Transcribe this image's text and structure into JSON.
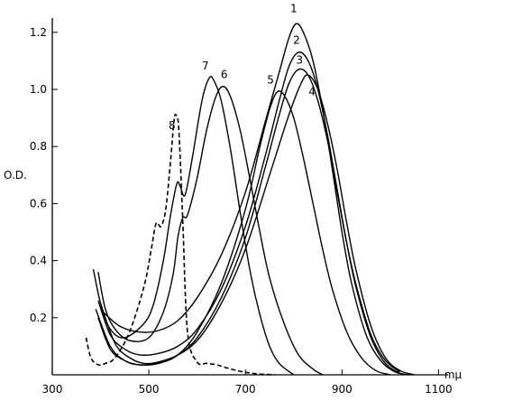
{
  "chart_data": {
    "type": "line",
    "title": "",
    "ylabel": "O.D.",
    "xlabel": "mμ",
    "xlim": [
      300,
      1200
    ],
    "ylim": [
      0,
      1.25
    ],
    "x_ticks": [
      {
        "value": 300,
        "label": "300"
      },
      {
        "value": 500,
        "label": "500"
      },
      {
        "value": 700,
        "label": "700"
      },
      {
        "value": 900,
        "label": "900"
      },
      {
        "value": 1100,
        "label": "1100"
      }
    ],
    "y_ticks": [
      {
        "value": 0.2,
        "label": "0.2"
      },
      {
        "value": 0.4,
        "label": "0.4"
      },
      {
        "value": 0.6,
        "label": "0.6"
      },
      {
        "value": 0.8,
        "label": "0.8"
      },
      {
        "value": 1.0,
        "label": "1.0"
      },
      {
        "value": 1.2,
        "label": "1.2"
      }
    ],
    "grid": false,
    "series": [
      {
        "name": "1",
        "dashed": false,
        "label_at": [
          800,
          1.27
        ],
        "points": [
          [
            405,
            0.22
          ],
          [
            440,
            0.17
          ],
          [
            480,
            0.15
          ],
          [
            520,
            0.155
          ],
          [
            560,
            0.19
          ],
          [
            600,
            0.27
          ],
          [
            650,
            0.42
          ],
          [
            700,
            0.64
          ],
          [
            740,
            0.88
          ],
          [
            770,
            1.06
          ],
          [
            790,
            1.18
          ],
          [
            805,
            1.23
          ],
          [
            820,
            1.2
          ],
          [
            840,
            1.1
          ],
          [
            860,
            0.93
          ],
          [
            880,
            0.72
          ],
          [
            900,
            0.5
          ],
          [
            920,
            0.32
          ],
          [
            950,
            0.14
          ],
          [
            980,
            0.05
          ],
          [
            1010,
            0.01
          ],
          [
            1040,
            0.0
          ]
        ]
      },
      {
        "name": "2",
        "dashed": false,
        "label_at": [
          806,
          1.16
        ],
        "points": [
          [
            395,
            0.26
          ],
          [
            420,
            0.14
          ],
          [
            450,
            0.09
          ],
          [
            480,
            0.07
          ],
          [
            520,
            0.075
          ],
          [
            560,
            0.1
          ],
          [
            600,
            0.16
          ],
          [
            650,
            0.3
          ],
          [
            700,
            0.52
          ],
          [
            740,
            0.76
          ],
          [
            770,
            0.96
          ],
          [
            790,
            1.08
          ],
          [
            810,
            1.13
          ],
          [
            830,
            1.1
          ],
          [
            850,
            1.0
          ],
          [
            870,
            0.84
          ],
          [
            890,
            0.65
          ],
          [
            910,
            0.46
          ],
          [
            930,
            0.3
          ],
          [
            960,
            0.13
          ],
          [
            990,
            0.04
          ],
          [
            1020,
            0.005
          ]
        ]
      },
      {
        "name": "3",
        "dashed": false,
        "label_at": [
          812,
          1.09
        ],
        "points": [
          [
            400,
            0.25
          ],
          [
            430,
            0.11
          ],
          [
            460,
            0.06
          ],
          [
            490,
            0.04
          ],
          [
            520,
            0.045
          ],
          [
            560,
            0.07
          ],
          [
            600,
            0.13
          ],
          [
            650,
            0.27
          ],
          [
            700,
            0.48
          ],
          [
            740,
            0.72
          ],
          [
            770,
            0.91
          ],
          [
            790,
            1.02
          ],
          [
            810,
            1.07
          ],
          [
            830,
            1.05
          ],
          [
            850,
            0.96
          ],
          [
            870,
            0.82
          ],
          [
            890,
            0.64
          ],
          [
            910,
            0.46
          ],
          [
            930,
            0.31
          ],
          [
            960,
            0.14
          ],
          [
            990,
            0.05
          ],
          [
            1020,
            0.01
          ]
        ]
      },
      {
        "name": "4",
        "dashed": false,
        "label_at": [
          838,
          0.98
        ],
        "points": [
          [
            395,
            0.2
          ],
          [
            420,
            0.09
          ],
          [
            450,
            0.05
          ],
          [
            480,
            0.035
          ],
          [
            510,
            0.04
          ],
          [
            550,
            0.06
          ],
          [
            600,
            0.12
          ],
          [
            650,
            0.25
          ],
          [
            700,
            0.44
          ],
          [
            750,
            0.7
          ],
          [
            790,
            0.91
          ],
          [
            815,
            1.02
          ],
          [
            830,
            1.05
          ],
          [
            850,
            1.0
          ],
          [
            870,
            0.88
          ],
          [
            890,
            0.72
          ],
          [
            910,
            0.53
          ],
          [
            930,
            0.36
          ],
          [
            960,
            0.17
          ],
          [
            990,
            0.06
          ],
          [
            1020,
            0.015
          ],
          [
            1050,
            0.0
          ]
        ]
      },
      {
        "name": "5",
        "dashed": false,
        "label_at": [
          752,
          1.02
        ],
        "points": [
          [
            390,
            0.23
          ],
          [
            420,
            0.1
          ],
          [
            450,
            0.05
          ],
          [
            480,
            0.035
          ],
          [
            520,
            0.04
          ],
          [
            560,
            0.07
          ],
          [
            600,
            0.15
          ],
          [
            650,
            0.32
          ],
          [
            700,
            0.58
          ],
          [
            730,
            0.8
          ],
          [
            750,
            0.93
          ],
          [
            765,
            0.99
          ],
          [
            780,
            0.98
          ],
          [
            800,
            0.9
          ],
          [
            820,
            0.76
          ],
          [
            840,
            0.6
          ],
          [
            860,
            0.44
          ],
          [
            880,
            0.3
          ],
          [
            910,
            0.15
          ],
          [
            940,
            0.06
          ],
          [
            970,
            0.015
          ],
          [
            1000,
            0.0
          ]
        ]
      },
      {
        "name": "6",
        "dashed": false,
        "label_at": [
          656,
          1.04
        ],
        "points": [
          [
            395,
            0.36
          ],
          [
            410,
            0.23
          ],
          [
            430,
            0.16
          ],
          [
            460,
            0.12
          ],
          [
            500,
            0.13
          ],
          [
            530,
            0.22
          ],
          [
            550,
            0.35
          ],
          [
            560,
            0.48
          ],
          [
            570,
            0.55
          ],
          [
            580,
            0.56
          ],
          [
            600,
            0.69
          ],
          [
            620,
            0.86
          ],
          [
            640,
            0.98
          ],
          [
            655,
            1.01
          ],
          [
            670,
            0.97
          ],
          [
            690,
            0.85
          ],
          [
            710,
            0.68
          ],
          [
            730,
            0.5
          ],
          [
            750,
            0.34
          ],
          [
            780,
            0.18
          ],
          [
            810,
            0.07
          ],
          [
            840,
            0.02
          ],
          [
            860,
            0.0
          ]
        ]
      },
      {
        "name": "7",
        "dashed": false,
        "label_at": [
          617,
          1.07
        ],
        "points": [
          [
            385,
            0.37
          ],
          [
            400,
            0.25
          ],
          [
            420,
            0.16
          ],
          [
            450,
            0.13
          ],
          [
            490,
            0.18
          ],
          [
            510,
            0.25
          ],
          [
            530,
            0.4
          ],
          [
            545,
            0.56
          ],
          [
            558,
            0.67
          ],
          [
            565,
            0.66
          ],
          [
            575,
            0.63
          ],
          [
            590,
            0.76
          ],
          [
            610,
            0.96
          ],
          [
            625,
            1.04
          ],
          [
            635,
            1.03
          ],
          [
            650,
            0.96
          ],
          [
            670,
            0.78
          ],
          [
            690,
            0.56
          ],
          [
            710,
            0.36
          ],
          [
            730,
            0.21
          ],
          [
            750,
            0.1
          ],
          [
            770,
            0.04
          ],
          [
            800,
            0.0
          ]
        ]
      },
      {
        "name": "8",
        "dashed": true,
        "label_at": [
          548,
          0.86
        ],
        "points": [
          [
            370,
            0.13
          ],
          [
            380,
            0.06
          ],
          [
            395,
            0.035
          ],
          [
            410,
            0.04
          ],
          [
            430,
            0.06
          ],
          [
            460,
            0.15
          ],
          [
            490,
            0.31
          ],
          [
            505,
            0.44
          ],
          [
            515,
            0.53
          ],
          [
            525,
            0.52
          ],
          [
            535,
            0.58
          ],
          [
            545,
            0.75
          ],
          [
            552,
            0.89
          ],
          [
            556,
            0.91
          ],
          [
            562,
            0.86
          ],
          [
            570,
            0.55
          ],
          [
            580,
            0.15
          ],
          [
            600,
            0.045
          ],
          [
            620,
            0.04
          ],
          [
            640,
            0.035
          ],
          [
            660,
            0.025
          ],
          [
            690,
            0.012
          ],
          [
            720,
            0.004
          ],
          [
            760,
            0.0
          ]
        ]
      }
    ]
  }
}
